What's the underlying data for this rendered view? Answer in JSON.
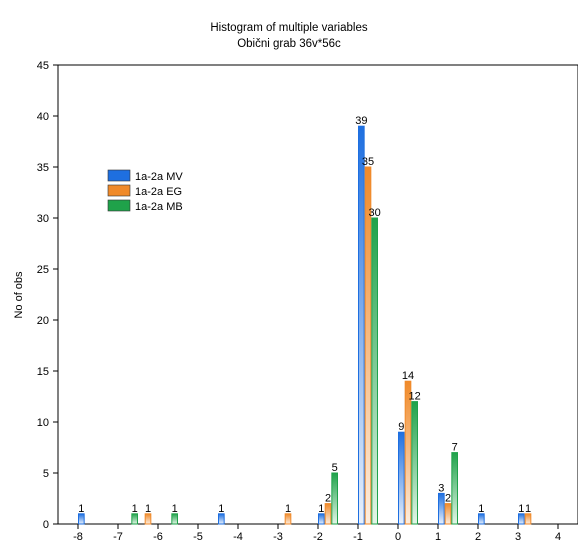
{
  "chart_data": {
    "type": "bar",
    "title": "Histogram of multiple variables",
    "subtitle": "Obični grab 36v*56c",
    "xlabel": "",
    "ylabel": "No of obs",
    "ylim": [
      0,
      45
    ],
    "yticks": [
      0,
      5,
      10,
      15,
      20,
      25,
      30,
      35,
      40,
      45
    ],
    "xlim": [
      -8.5,
      4.5
    ],
    "xticks": [
      -8,
      -7,
      -6,
      -5,
      -4,
      -3,
      -2,
      -1,
      0,
      1,
      2,
      3,
      4
    ],
    "bin_width": 0.5,
    "bin_centers": [
      -8.25,
      -7.75,
      -7.25,
      -6.75,
      -6.25,
      -5.75,
      -5.25,
      -4.75,
      -4.25,
      -3.75,
      -3.25,
      -2.75,
      -2.25,
      -1.75,
      -1.25,
      -0.75,
      -0.25,
      0.25,
      0.75,
      1.25,
      1.75,
      2.25,
      2.75,
      3.25,
      3.75,
      4.25
    ],
    "legend_position": "upper-left",
    "grid": false,
    "series": [
      {
        "name": "1a-2a MV",
        "color": "#1e6fe0",
        "values": [
          0,
          1,
          0,
          0,
          0,
          0,
          0,
          0,
          1,
          0,
          0,
          0,
          0,
          1,
          0,
          39,
          0,
          9,
          0,
          3,
          0,
          1,
          0,
          1,
          0,
          0
        ]
      },
      {
        "name": "1a-2a EG",
        "color": "#f08a2a",
        "values": [
          0,
          0,
          0,
          0,
          1,
          0,
          0,
          0,
          0,
          0,
          0,
          1,
          0,
          2,
          0,
          35,
          0,
          14,
          0,
          2,
          0,
          0,
          0,
          1,
          0,
          0
        ]
      },
      {
        "name": "1a-2a MB",
        "color": "#1fa24a",
        "values": [
          0,
          0,
          0,
          1,
          0,
          1,
          0,
          0,
          0,
          0,
          0,
          0,
          0,
          5,
          0,
          30,
          0,
          12,
          0,
          7,
          0,
          0,
          0,
          0,
          0,
          0
        ]
      }
    ]
  }
}
